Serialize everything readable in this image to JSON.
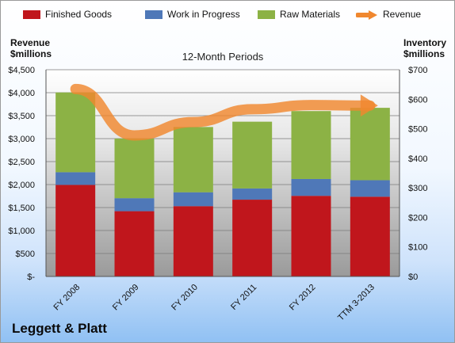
{
  "company": "Leggett & Platt",
  "chart_data": {
    "type": "bar",
    "stacked": true,
    "subtitle": "12-Month Periods",
    "categories": [
      "FY 2008",
      "FY 2009",
      "FY 2010",
      "FY 2011",
      "FY 2012",
      "TTM 3-2013"
    ],
    "series": [
      {
        "name": "Finished Goods",
        "axis": "right",
        "color": "#c0161c",
        "values": [
          310,
          221,
          238,
          260,
          273,
          270
        ]
      },
      {
        "name": "Work in Progress",
        "axis": "right",
        "color": "#4f78b8",
        "values": [
          43,
          44,
          47,
          38,
          57,
          56
        ]
      },
      {
        "name": "Raw Materials",
        "axis": "right",
        "color": "#8cb245",
        "values": [
          270,
          202,
          221,
          226,
          230,
          245
        ]
      },
      {
        "name": "Revenue",
        "axis": "left",
        "type": "line",
        "color": "#f0872e",
        "values": [
          4080,
          3070,
          3360,
          3640,
          3730,
          3720
        ]
      }
    ],
    "left_axis": {
      "label": "Revenue $millions",
      "ylim": [
        0,
        4500
      ],
      "ticks": [
        "$-",
        "$500",
        "$1,000",
        "$1,500",
        "$2,000",
        "$2,500",
        "$3,000",
        "$3,500",
        "$4,000",
        "$4,500"
      ]
    },
    "right_axis": {
      "label": "Inventory $millions",
      "ylim": [
        0,
        700
      ],
      "ticks": [
        "$0",
        "$100",
        "$200",
        "$300",
        "$400",
        "$500",
        "$600",
        "$700"
      ]
    },
    "grid": true,
    "legend": "top"
  }
}
